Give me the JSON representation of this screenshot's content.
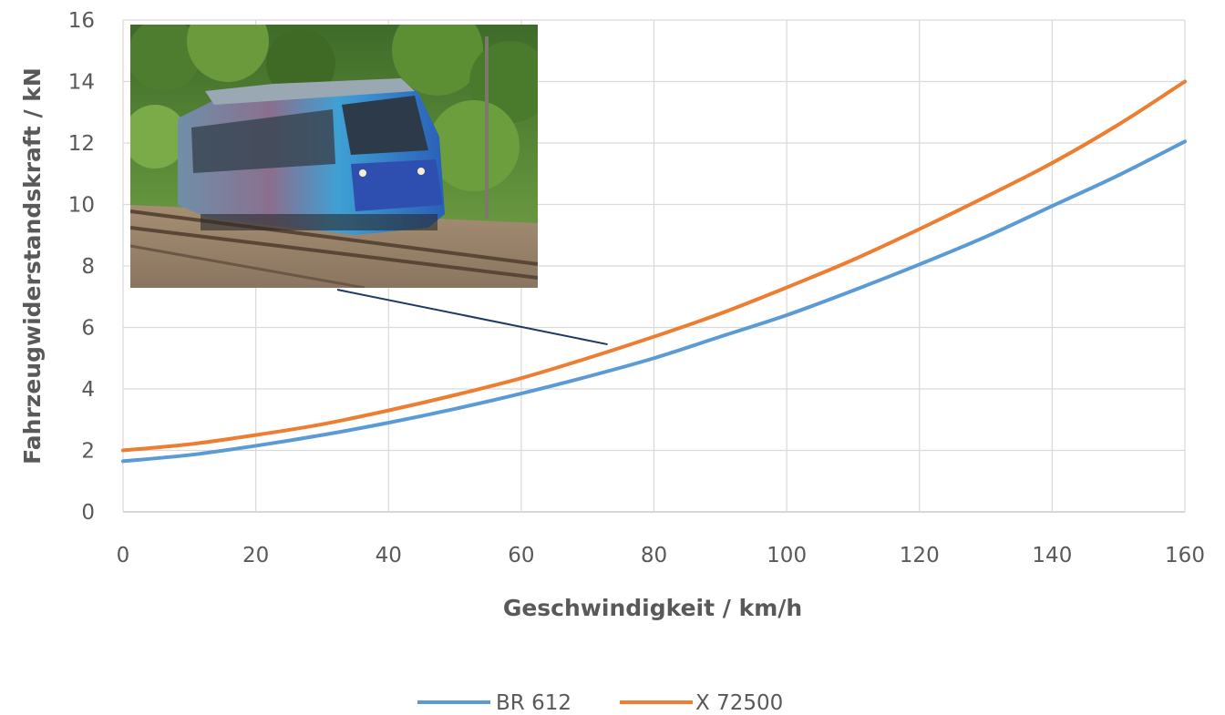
{
  "chart_data": {
    "type": "line",
    "xlabel": "Geschwindigkeit / km/h",
    "ylabel": "Fahrzeugwiderstandskraft  / kN",
    "xlim": [
      0,
      160
    ],
    "ylim": [
      0,
      16
    ],
    "x_ticks": [
      "0",
      "20",
      "40",
      "60",
      "80",
      "100",
      "120",
      "140",
      "160"
    ],
    "y_ticks": [
      "0",
      "2",
      "4",
      "6",
      "8",
      "10",
      "12",
      "14",
      "16"
    ],
    "grid": true,
    "legend_position": "bottom",
    "x": [
      0,
      10,
      20,
      30,
      40,
      50,
      60,
      70,
      80,
      90,
      100,
      110,
      120,
      130,
      140,
      150,
      160
    ],
    "series": [
      {
        "name": "BR 612",
        "color": "#5B9BD5",
        "values": [
          1.65,
          1.85,
          2.15,
          2.5,
          2.9,
          3.35,
          3.85,
          4.4,
          5.0,
          5.7,
          6.4,
          7.2,
          8.05,
          8.95,
          9.95,
          10.95,
          12.05
        ]
      },
      {
        "name": "X 72500",
        "color": "#ED7D31",
        "values": [
          2.0,
          2.2,
          2.5,
          2.85,
          3.3,
          3.8,
          4.35,
          5.0,
          5.7,
          6.45,
          7.3,
          8.2,
          9.2,
          10.25,
          11.35,
          12.6,
          14.0
        ]
      }
    ],
    "photo_callout": {
      "x": 73,
      "y": 5.45
    }
  }
}
